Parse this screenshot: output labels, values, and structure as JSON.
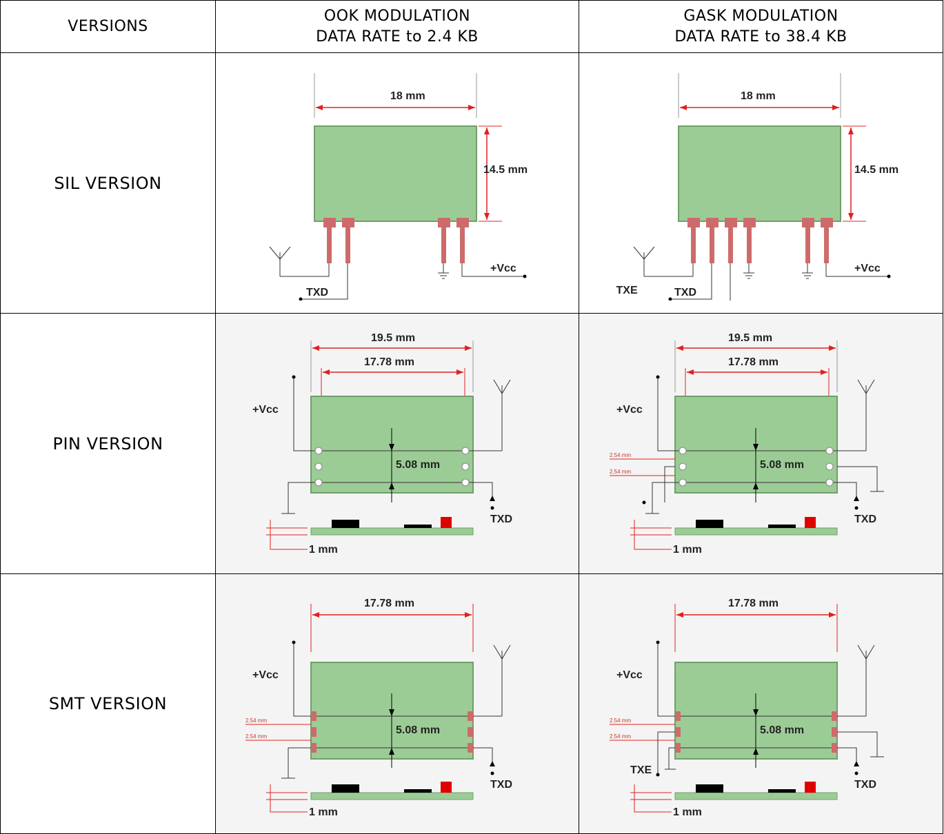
{
  "header": {
    "versions": "VERSIONS",
    "ook_line1": "OOK MODULATION",
    "ook_line2": "DATA RATE to 2.4 KB",
    "gask_line1": "GASK MODULATION",
    "gask_line2": "DATA RATE to 38.4 KB"
  },
  "rows": [
    {
      "label": "SIL VERSION"
    },
    {
      "label": "PIN VERSION"
    },
    {
      "label": "SMT VERSION"
    }
  ],
  "sil": {
    "width": "18 mm",
    "height": "14.5 mm",
    "vcc": "+Vcc",
    "txd": "TXD",
    "txe": "TXE"
  },
  "pin": {
    "outer": "19.5 mm",
    "inner": "17.78 mm",
    "pitch": "5.08 mm",
    "thick": "1 mm",
    "vcc": "+Vcc",
    "txd": "TXD",
    "pad": "2.54 mm"
  },
  "smt": {
    "inner": "17.78 mm",
    "pitch": "5.08 mm",
    "thick": "1 mm",
    "vcc": "+Vcc",
    "txd": "TXD",
    "txe": "TXE",
    "pad": "2.54 mm"
  },
  "colors": {
    "board": "#9ccc96",
    "board_edge": "#6f9f6a",
    "pin": "#cd6b6b",
    "dim_red": "#e02020",
    "chip": "#000000",
    "chip_red": "#e00000"
  }
}
